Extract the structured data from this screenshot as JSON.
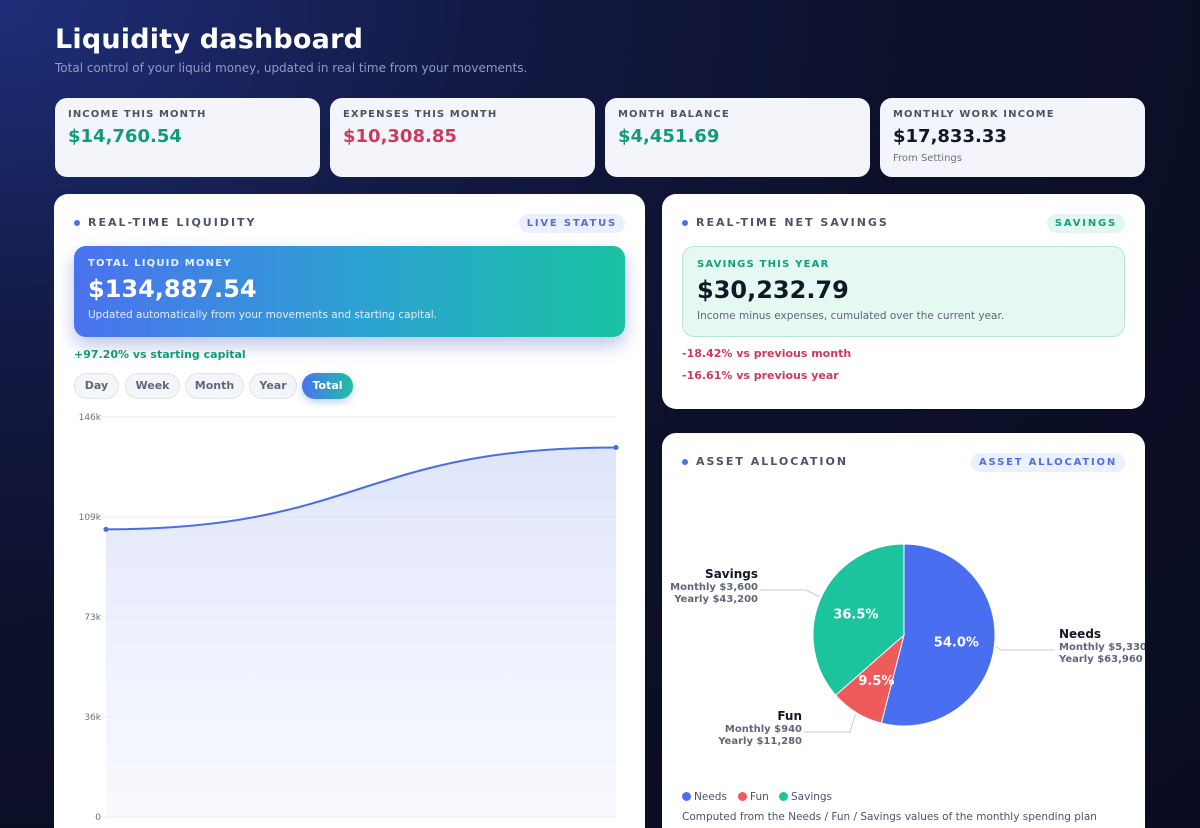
{
  "header": {
    "title": "Liquidity dashboard",
    "subtitle": "Total control of your liquid money, updated in real time from your movements."
  },
  "stats": [
    {
      "label": "INCOME THIS MONTH",
      "value": "$14,760.54",
      "tone": "green",
      "note": ""
    },
    {
      "label": "EXPENSES THIS MONTH",
      "value": "$10,308.85",
      "tone": "red",
      "note": ""
    },
    {
      "label": "MONTH BALANCE",
      "value": "$4,451.69",
      "tone": "green",
      "note": ""
    },
    {
      "label": "MONTHLY WORK INCOME",
      "value": "$17,833.33",
      "tone": "dark",
      "note": "From Settings"
    }
  ],
  "liquidity": {
    "title": "REAL-TIME LIQUIDITY",
    "badge": "LIVE STATUS",
    "hero_label": "TOTAL LIQUID MONEY",
    "hero_value": "$134,887.54",
    "hero_note": "Updated automatically from your movements and starting capital.",
    "change": "+97.20% vs starting capital",
    "tabs": [
      "Day",
      "Week",
      "Month",
      "Year",
      "Total"
    ],
    "active_tab": "Total"
  },
  "net_savings": {
    "title": "REAL-TIME NET SAVINGS",
    "badge": "SAVINGS",
    "box_label": "SAVINGS THIS YEAR",
    "box_value": "$30,232.79",
    "box_note": "Income minus expenses, cumulated over the current year.",
    "change_month": "-18.42% vs previous month",
    "change_year": "-16.61% vs previous year"
  },
  "allocation": {
    "title": "ASSET ALLOCATION",
    "badge": "ASSET ALLOCATION",
    "footnote": "Computed from the Needs / Fun / Savings values of the monthly spending plan",
    "legend": [
      "Needs",
      "Fun",
      "Savings"
    ]
  },
  "colors": {
    "accent": "#4a6ef0",
    "positive": "#0f9d76",
    "negative": "#cc3b5e",
    "needs": "#4a6ef0",
    "fun": "#ef5a5a",
    "savings": "#1bc49c"
  },
  "chart_data": [
    {
      "type": "area",
      "title": "",
      "xlabel": "",
      "ylabel": "",
      "y_ticks": [
        "146k",
        "109k",
        "73k",
        "36k",
        "0"
      ],
      "ylim": [
        0,
        146000
      ],
      "x": [
        0,
        1
      ],
      "series": [
        {
          "values": [
            105000,
            134887.54
          ]
        }
      ],
      "grid": true
    },
    {
      "type": "pie",
      "slices": [
        {
          "name": "Needs",
          "percent": 54.0,
          "label": "54.0%",
          "monthly": "Monthly $5,330",
          "yearly": "Yearly $63,960"
        },
        {
          "name": "Fun",
          "percent": 9.5,
          "label": "9.5%",
          "monthly": "Monthly $940",
          "yearly": "Yearly $11,280"
        },
        {
          "name": "Savings",
          "percent": 36.5,
          "label": "36.5%",
          "monthly": "Monthly $3,600",
          "yearly": "Yearly $43,200"
        }
      ],
      "legend_position": "bottom-left"
    }
  ]
}
